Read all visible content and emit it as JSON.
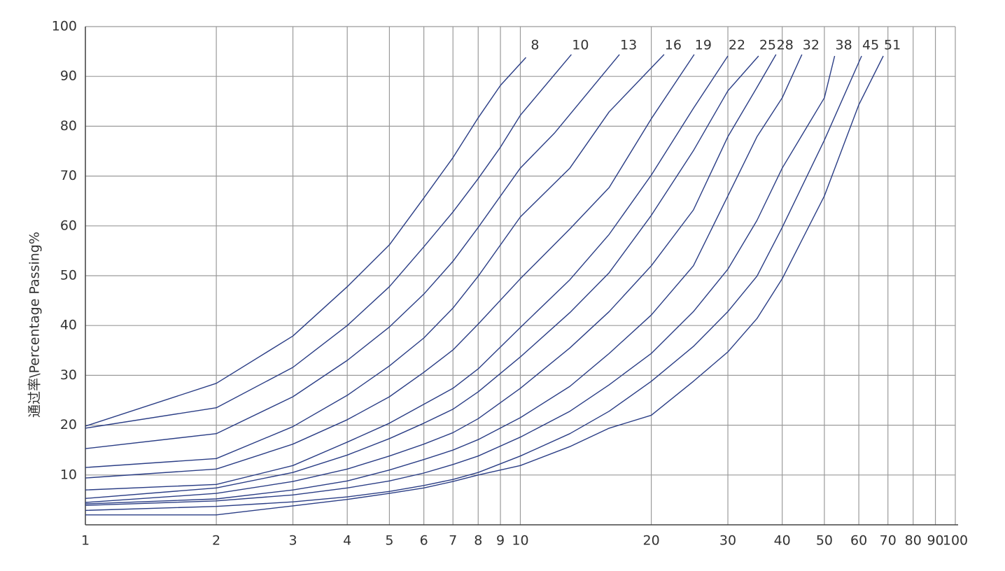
{
  "chart_data": {
    "type": "line",
    "y_label": "通过率\\Percentage Passing%",
    "xscale": "log",
    "grid": true,
    "color": "#2a3d85",
    "xlim": [
      1,
      100
    ],
    "ylim": [
      0,
      100
    ],
    "xticks": [
      1,
      2,
      3,
      4,
      5,
      6,
      7,
      8,
      9,
      10,
      20,
      30,
      40,
      50,
      60,
      70,
      80,
      90,
      100
    ],
    "yticks": [
      10,
      20,
      30,
      40,
      50,
      60,
      70,
      80,
      90,
      100
    ],
    "series": [
      {
        "name": "8",
        "color": "#2a3d85",
        "x": [
          1,
          2,
          3,
          4,
          5,
          6,
          7,
          8,
          9,
          10.3
        ],
        "values": [
          19.8,
          28.4,
          37.9,
          47.8,
          56.2,
          65.6,
          73.7,
          81.7,
          88.2,
          93.8
        ]
      },
      {
        "name": "10",
        "color": "#2a3d85",
        "x": [
          1,
          2,
          3,
          4,
          5,
          6,
          7,
          8,
          9,
          10,
          13.1
        ],
        "values": [
          19.4,
          23.5,
          31.6,
          40,
          47.8,
          55.8,
          62.8,
          69.5,
          75.8,
          82.2,
          94.4
        ]
      },
      {
        "name": "13",
        "color": "#2a3d85",
        "x": [
          1,
          2,
          3,
          4,
          5,
          6,
          7,
          8,
          10,
          12,
          16.9
        ],
        "values": [
          15.3,
          18.3,
          25.7,
          33,
          39.7,
          46.3,
          52.9,
          59.7,
          71.6,
          78.7,
          94.4
        ]
      },
      {
        "name": "16",
        "color": "#2a3d85",
        "x": [
          1,
          2,
          3,
          4,
          5,
          6,
          7,
          8,
          10,
          13,
          16,
          21.4
        ],
        "values": [
          11.5,
          13.3,
          19.7,
          26,
          31.9,
          37.5,
          43.5,
          49.9,
          61.8,
          71.6,
          82.9,
          94.4
        ]
      },
      {
        "name": "19",
        "color": "#2a3d85",
        "x": [
          1,
          2,
          3,
          4,
          5,
          6,
          7,
          8,
          10,
          13,
          16,
          20,
          25.1
        ],
        "values": [
          9.4,
          11.2,
          16.2,
          21.1,
          25.7,
          30.6,
          35.1,
          40.3,
          49.4,
          59.4,
          67.7,
          81.5,
          94.4
        ]
      },
      {
        "name": "22",
        "color": "#2a3d85",
        "x": [
          1,
          2,
          3,
          4,
          5,
          6,
          7,
          8,
          10,
          13,
          16,
          20,
          25,
          30
        ],
        "values": [
          7,
          8.1,
          11.9,
          16.6,
          20.4,
          24.2,
          27.4,
          31.3,
          39.6,
          49.2,
          58.3,
          70.2,
          83.6,
          94.1
        ]
      },
      {
        "name": "25",
        "color": "#2a3d85",
        "x": [
          1,
          2,
          3,
          4,
          5,
          6,
          7,
          8,
          10,
          13,
          16,
          20,
          25,
          30,
          35.3
        ],
        "values": [
          5.3,
          7.4,
          10.5,
          14,
          17.3,
          20.4,
          23.2,
          26.7,
          33.7,
          42.6,
          50.6,
          62.1,
          75.1,
          87.1,
          94.1
        ]
      },
      {
        "name": "28",
        "color": "#2a3d85",
        "x": [
          1,
          2,
          3,
          4,
          5,
          6,
          7,
          8,
          10,
          13,
          16,
          20,
          25,
          30,
          35,
          38.7
        ],
        "values": [
          4.5,
          6.3,
          8.7,
          11.2,
          13.8,
          16.2,
          18.5,
          21.3,
          27.4,
          35.5,
          42.8,
          52,
          63.2,
          77.9,
          87.8,
          94.4
        ]
      },
      {
        "name": "32",
        "color": "#2a3d85",
        "x": [
          1,
          2,
          3,
          4,
          5,
          6,
          7,
          8,
          10,
          13,
          16,
          20,
          25,
          30,
          35,
          40,
          44.4
        ],
        "values": [
          4.2,
          5.2,
          7,
          8.8,
          11,
          13.1,
          15,
          17.1,
          21.5,
          27.8,
          34.4,
          42.1,
          52,
          66,
          77.9,
          85.7,
          94.4
        ]
      },
      {
        "name": "38",
        "color": "#2a3d85",
        "x": [
          1,
          2,
          3,
          4,
          5,
          6,
          7,
          8,
          10,
          13,
          16,
          20,
          25,
          30,
          35,
          40,
          50,
          52.8
        ],
        "values": [
          3.9,
          4.8,
          6,
          7.4,
          8.8,
          10.4,
          12.1,
          13.8,
          17.6,
          22.8,
          28.1,
          34.4,
          42.8,
          51.3,
          61.1,
          71.6,
          85.7,
          94.1
        ]
      },
      {
        "name": "45",
        "color": "#2a3d85",
        "x": [
          1,
          2,
          3,
          4,
          5,
          6,
          7,
          8,
          10,
          13,
          16,
          20,
          25,
          30,
          35,
          40,
          50,
          60.9
        ],
        "values": [
          2.9,
          3.7,
          4.6,
          5.6,
          6.7,
          7.9,
          9.1,
          10.5,
          13.8,
          18.3,
          22.8,
          28.8,
          35.8,
          42.8,
          49.9,
          59.7,
          77.2,
          94.1
        ]
      },
      {
        "name": "51",
        "color": "#2a3d85",
        "x": [
          1,
          2,
          3,
          4,
          5,
          6,
          7,
          8,
          10,
          13,
          16,
          20,
          25,
          30,
          35,
          40,
          50,
          60,
          68.3
        ],
        "values": [
          2,
          2,
          3.8,
          5.1,
          6.3,
          7.4,
          8.7,
          10,
          11.9,
          15.7,
          19.4,
          22,
          28.8,
          34.7,
          41.4,
          49.4,
          66,
          84.3,
          94.1
        ]
      }
    ]
  }
}
